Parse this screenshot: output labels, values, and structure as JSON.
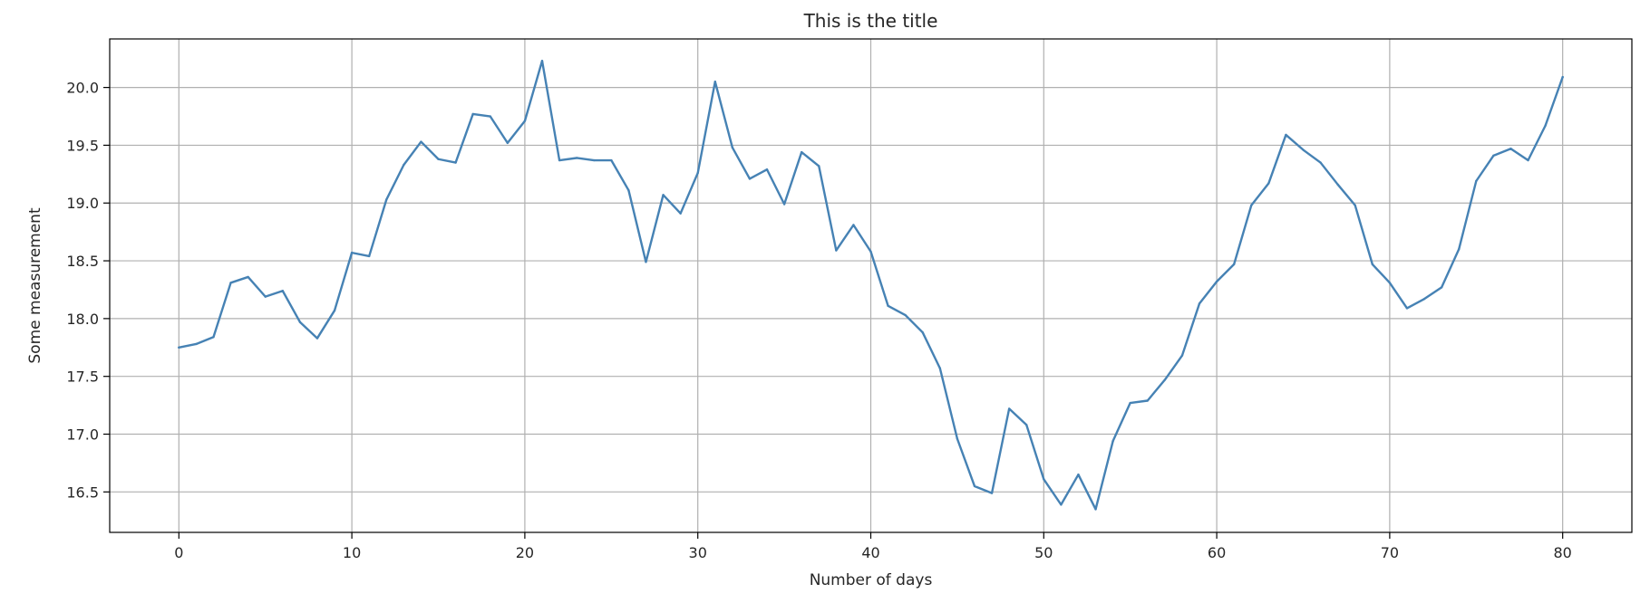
{
  "chart_data": {
    "type": "line",
    "title": "This is the title",
    "xlabel": "Number of days",
    "ylabel": "Some measurement",
    "xlim": [
      -4,
      84
    ],
    "ylim": [
      16.15,
      20.42
    ],
    "xticks": [
      0,
      10,
      20,
      30,
      40,
      50,
      60,
      70,
      80
    ],
    "yticks": [
      16.5,
      17.0,
      17.5,
      18.0,
      18.5,
      19.0,
      19.5,
      20.0
    ],
    "ytick_labels": [
      "16.5",
      "17.0",
      "17.5",
      "18.0",
      "18.5",
      "19.0",
      "19.5",
      "20.0"
    ],
    "grid": true,
    "legend": "none",
    "color": "#4682b4",
    "series": [
      {
        "x": [
          0,
          1,
          2,
          3,
          4,
          5,
          6,
          7,
          8,
          9,
          10,
          11,
          12,
          13,
          14,
          15,
          16,
          17,
          18,
          19,
          20,
          21,
          22,
          23,
          24,
          25,
          26,
          27,
          28,
          29,
          30,
          31,
          32,
          33,
          34,
          35,
          36,
          37,
          38,
          39,
          40,
          41,
          42,
          43,
          44,
          45,
          46,
          47,
          48,
          49,
          50,
          51,
          52,
          53,
          54,
          55,
          56,
          57,
          58,
          59,
          60,
          61,
          62,
          63,
          64,
          65,
          66,
          67,
          68,
          69,
          70,
          71,
          72,
          73,
          74,
          75,
          76,
          77,
          78,
          79,
          80
        ],
        "values": [
          17.75,
          17.78,
          17.84,
          18.31,
          18.36,
          18.19,
          18.24,
          17.97,
          17.83,
          18.07,
          18.57,
          18.54,
          19.03,
          19.33,
          19.53,
          19.38,
          19.35,
          19.77,
          19.75,
          19.52,
          19.71,
          20.23,
          19.37,
          19.39,
          19.37,
          19.37,
          19.11,
          18.49,
          19.07,
          18.91,
          19.26,
          20.05,
          19.48,
          19.21,
          19.29,
          18.99,
          19.44,
          19.32,
          18.59,
          18.81,
          18.58,
          18.11,
          18.03,
          17.88,
          17.57,
          16.96,
          16.55,
          16.49,
          17.22,
          17.08,
          16.61,
          16.39,
          16.65,
          16.35,
          16.94,
          17.27,
          17.29,
          17.47,
          17.68,
          18.13,
          18.32,
          18.47,
          18.98,
          19.17,
          19.59,
          19.46,
          19.35,
          19.16,
          18.98,
          18.47,
          18.31,
          18.09,
          18.17,
          18.27,
          18.6,
          19.19,
          19.41,
          19.47,
          19.37,
          19.67,
          20.09
        ]
      }
    ]
  }
}
